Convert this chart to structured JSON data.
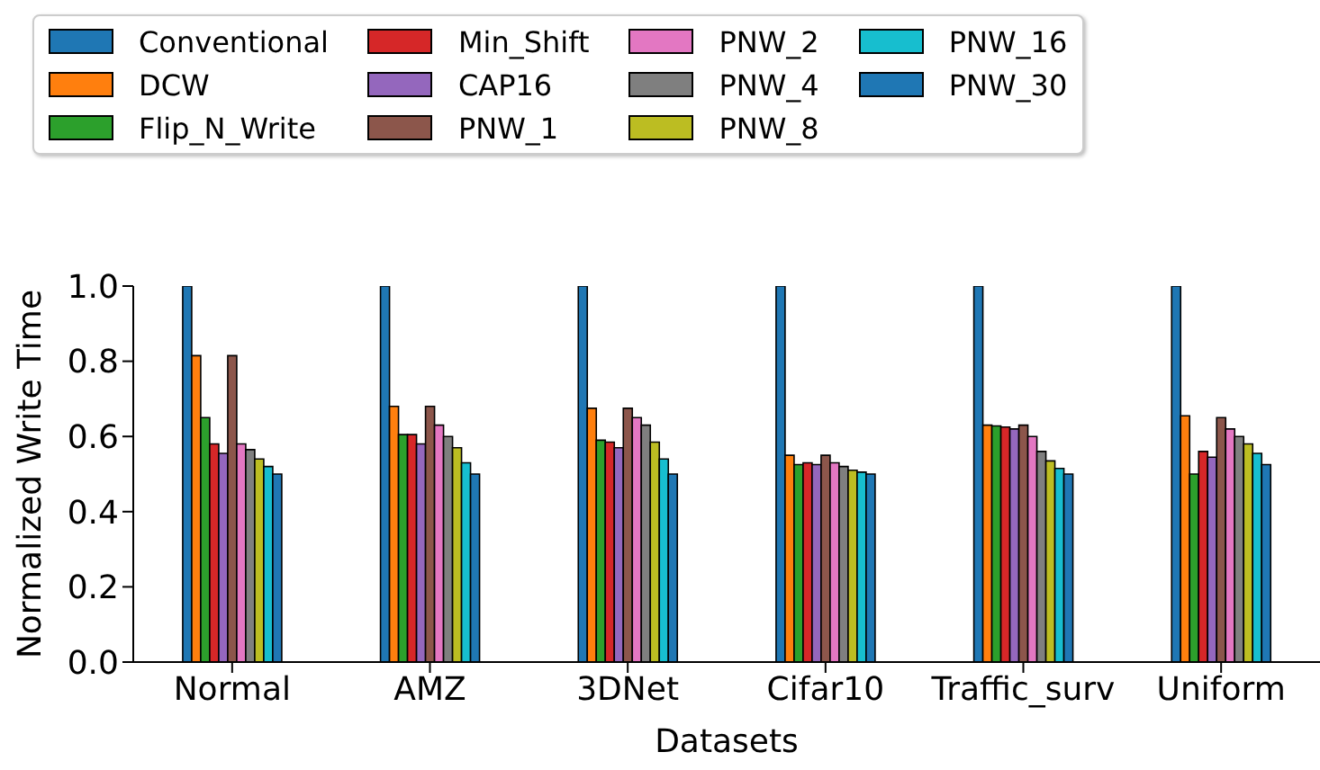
{
  "chart_data": {
    "type": "bar",
    "xlabel": "Datasets",
    "ylabel": "Normalized Write Time",
    "categories": [
      "Normal",
      "AMZ",
      "3DNet",
      "Cifar10",
      "Traffic_surv",
      "Uniform"
    ],
    "ylim": [
      0,
      1
    ],
    "yticks": [
      {
        "value": 0,
        "label": "0.0"
      },
      {
        "value": 0.2,
        "label": "0.2"
      },
      {
        "value": 0.4,
        "label": "0.4"
      },
      {
        "value": 0.6,
        "label": "0.6"
      },
      {
        "value": 0.8,
        "label": "0.8"
      },
      {
        "value": 1,
        "label": "1.0"
      }
    ],
    "grid": false,
    "legend": "top",
    "series": [
      {
        "name": "Conventional",
        "color": "#1f77b4",
        "values": [
          1.0,
          1.0,
          1.0,
          1.0,
          1.0,
          1.0
        ]
      },
      {
        "name": "DCW",
        "color": "#ff7f0e",
        "values": [
          0.815,
          0.68,
          0.675,
          0.55,
          0.63,
          0.655
        ]
      },
      {
        "name": "Flip_N_Write",
        "color": "#2ca02c",
        "values": [
          0.65,
          0.605,
          0.59,
          0.525,
          0.628,
          0.5
        ]
      },
      {
        "name": "Min_Shift",
        "color": "#d62728",
        "values": [
          0.58,
          0.605,
          0.585,
          0.53,
          0.625,
          0.56
        ]
      },
      {
        "name": "CAP16",
        "color": "#9467bd",
        "values": [
          0.555,
          0.58,
          0.57,
          0.525,
          0.62,
          0.545
        ]
      },
      {
        "name": "PNW_1",
        "color": "#8c564b",
        "values": [
          0.815,
          0.68,
          0.675,
          0.55,
          0.63,
          0.65
        ]
      },
      {
        "name": "PNW_2",
        "color": "#e377c2",
        "values": [
          0.58,
          0.63,
          0.65,
          0.53,
          0.6,
          0.62
        ]
      },
      {
        "name": "PNW_4",
        "color": "#7f7f7f",
        "values": [
          0.565,
          0.6,
          0.63,
          0.52,
          0.56,
          0.6
        ]
      },
      {
        "name": "PNW_8",
        "color": "#bcbd22",
        "values": [
          0.54,
          0.57,
          0.585,
          0.51,
          0.535,
          0.58
        ]
      },
      {
        "name": "PNW_16",
        "color": "#17becf",
        "values": [
          0.52,
          0.53,
          0.54,
          0.505,
          0.515,
          0.555
        ]
      },
      {
        "name": "PNW_30",
        "color": "#1f77b4",
        "values": [
          0.5,
          0.5,
          0.5,
          0.5,
          0.5,
          0.525
        ]
      }
    ]
  }
}
